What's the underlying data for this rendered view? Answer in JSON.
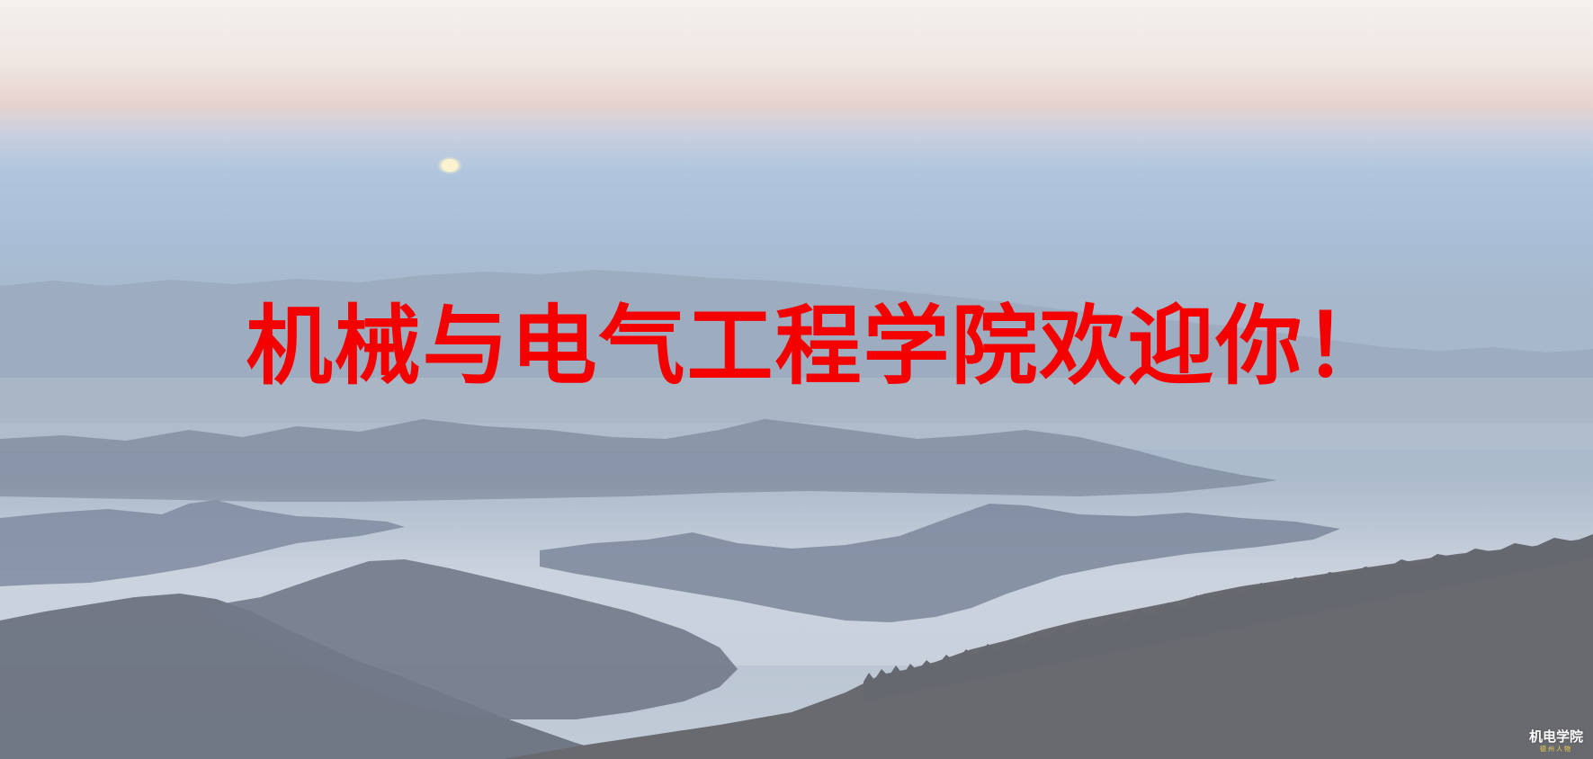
{
  "banner": {
    "headline": "机械与电气工程学院欢迎你！",
    "headline_color": "#f40000"
  },
  "watermark": {
    "title": "机电学院",
    "subtitle": "德州人物"
  },
  "scene": {
    "description_colors": {
      "sky_top": "#f4f1ee",
      "sky_pink": "#e7d3cf",
      "sky_blue": "#b0c6de",
      "mountain_far": "#8e9bae",
      "mountain_mid": "#7a8698",
      "mountain_near": "#6a6e76",
      "moon": "#f7efc8"
    }
  }
}
